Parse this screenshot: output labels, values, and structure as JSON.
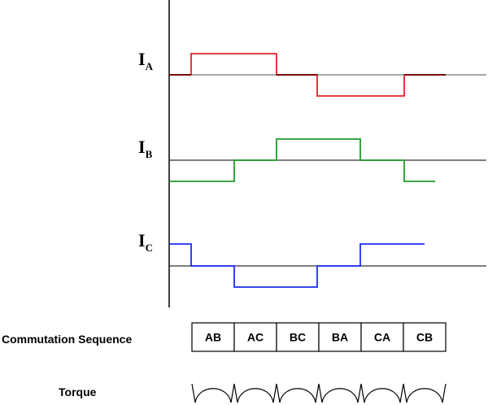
{
  "waveforms": [
    {
      "label": "I",
      "subscript": "A"
    },
    {
      "label": "I",
      "subscript": "B"
    },
    {
      "label": "I",
      "subscript": "C"
    }
  ],
  "commutation": {
    "label": "Commutation Sequence",
    "steps": [
      "AB",
      "AC",
      "BC",
      "BA",
      "CA",
      "CB"
    ]
  },
  "torque": {
    "label": "Torque"
  }
}
